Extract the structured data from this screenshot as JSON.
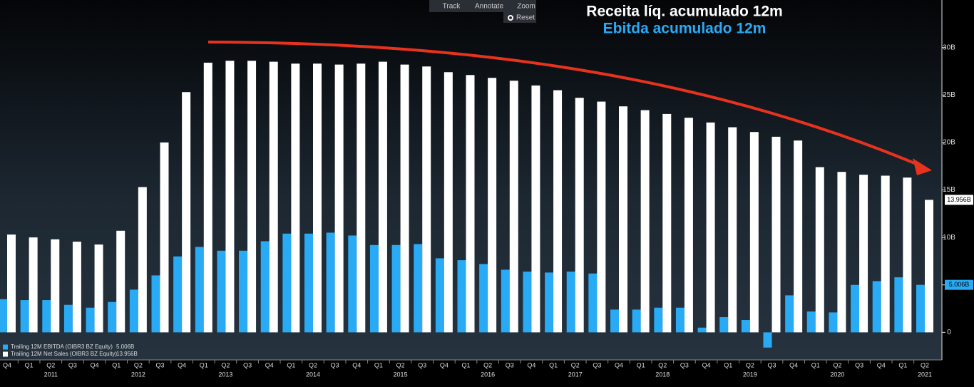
{
  "chart_data": {
    "type": "bar",
    "title": "Receita líq. acumulado 12m",
    "subtitle": "Ebitda acumulado 12m",
    "categories": [
      "Q4",
      "Q1",
      "Q2",
      "Q3",
      "Q4",
      "Q1",
      "Q2",
      "Q3",
      "Q4",
      "Q1",
      "Q2",
      "Q3",
      "Q4",
      "Q1",
      "Q2",
      "Q3",
      "Q4",
      "Q1",
      "Q2",
      "Q3",
      "Q4",
      "Q1",
      "Q2",
      "Q3",
      "Q4",
      "Q1",
      "Q2",
      "Q3",
      "Q4",
      "Q1",
      "Q2",
      "Q3",
      "Q4",
      "Q1",
      "Q2",
      "Q3",
      "Q4",
      "Q1",
      "Q2",
      "Q3",
      "Q4",
      "Q1",
      "Q2"
    ],
    "years": [
      "2011",
      "2012",
      "2013",
      "2014",
      "2015",
      "2016",
      "2017",
      "2018",
      "2019",
      "2020",
      "2021"
    ],
    "series": [
      {
        "name": "Trailing 12M EBITDA (OIBR3 BZ Equity)",
        "color": "#29aaf4",
        "legend_value": "5.006B",
        "last_value_label": "5.006B",
        "values": [
          3.5,
          3.4,
          3.4,
          2.9,
          2.6,
          3.2,
          4.5,
          6.0,
          8.0,
          9.0,
          8.6,
          8.6,
          9.6,
          10.4,
          10.4,
          10.5,
          10.2,
          9.2,
          9.2,
          9.3,
          7.8,
          7.6,
          7.2,
          6.6,
          6.4,
          6.3,
          6.4,
          6.2,
          2.4,
          2.4,
          2.6,
          2.6,
          0.5,
          1.6,
          1.3,
          -1.6,
          3.9,
          2.2,
          2.1,
          5.0,
          5.4,
          5.8,
          5.006
        ]
      },
      {
        "name": "Trailing 12M Net Sales (OIBR3 BZ Equity)",
        "color": "#ffffff",
        "legend_value": "13.956B",
        "last_value_label": "13.956B",
        "values": [
          10.3,
          10.0,
          9.8,
          9.55,
          9.25,
          10.7,
          15.3,
          20.0,
          25.3,
          28.4,
          28.6,
          28.6,
          28.5,
          28.3,
          28.3,
          28.2,
          28.3,
          28.5,
          28.2,
          28.0,
          27.4,
          27.1,
          26.8,
          26.5,
          26.0,
          25.5,
          24.7,
          24.3,
          23.8,
          23.4,
          23.0,
          22.6,
          22.1,
          21.6,
          21.1,
          20.6,
          20.2,
          17.4,
          16.9,
          16.6,
          16.5,
          16.3,
          13.956
        ]
      }
    ],
    "ylim": [
      -2.9,
      35
    ],
    "yticks": [
      0,
      {
        "value": 5,
        "label": "5B"
      },
      {
        "value": 10,
        "label": "10B"
      },
      {
        "value": 15,
        "label": "15B"
      },
      {
        "value": 20,
        "label": "20B"
      },
      {
        "value": 25,
        "label": "25B"
      },
      {
        "value": 30,
        "label": "30B"
      }
    ]
  },
  "toolbar": {
    "buttons": [
      "Track",
      "Annotate",
      "Zoom",
      "Reset"
    ]
  }
}
